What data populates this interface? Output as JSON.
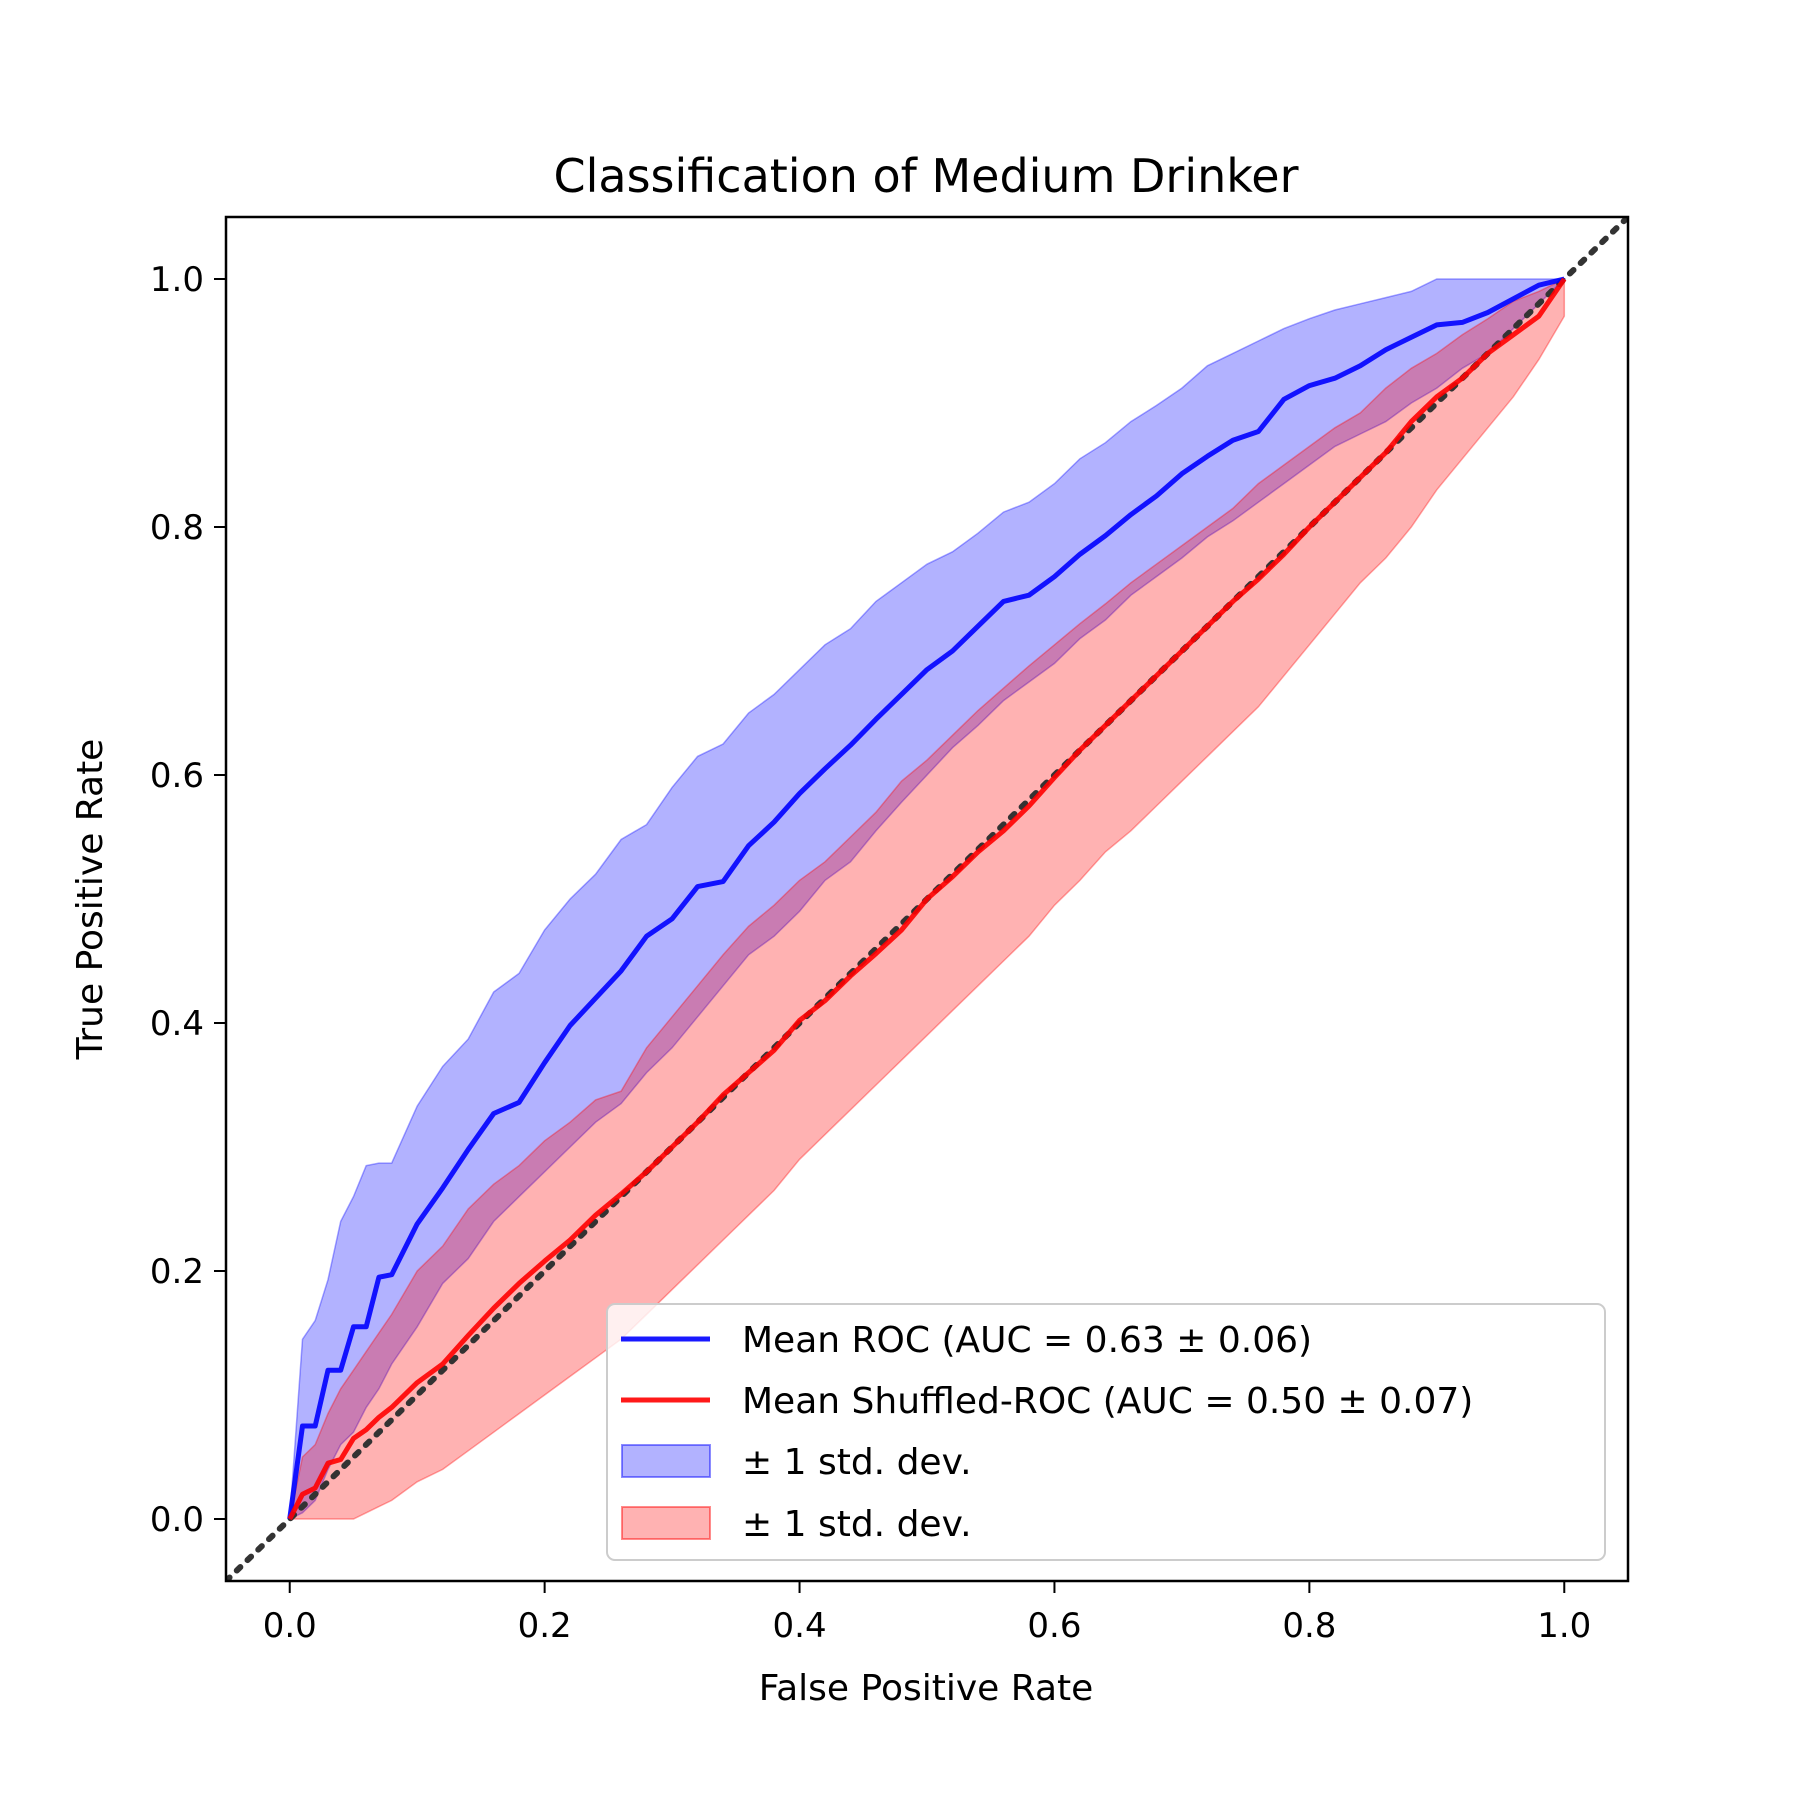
{
  "chart_data": {
    "type": "line",
    "title": "Classification of Medium Drinker",
    "xlabel": "False Positive Rate",
    "ylabel": "True Positive Rate",
    "xlim": [
      -0.05,
      1.05
    ],
    "ylim": [
      -0.05,
      1.05
    ],
    "xticks": [
      "0.0",
      "0.2",
      "0.4",
      "0.6",
      "0.8",
      "1.0"
    ],
    "yticks": [
      "0.0",
      "0.2",
      "0.4",
      "0.6",
      "0.8",
      "1.0"
    ],
    "grid": false,
    "legend_position": "lower-right",
    "series": [
      {
        "name": "Mean ROC (AUC = 0.63 ± 0.06)",
        "color": "#0000ff",
        "x": [
          0,
          0.01,
          0.02,
          0.03,
          0.04,
          0.05,
          0.06,
          0.07,
          0.08,
          0.1,
          0.12,
          0.14,
          0.16,
          0.18,
          0.2,
          0.22,
          0.24,
          0.26,
          0.28,
          0.3,
          0.32,
          0.34,
          0.36,
          0.38,
          0.4,
          0.42,
          0.44,
          0.46,
          0.48,
          0.5,
          0.52,
          0.54,
          0.56,
          0.58,
          0.6,
          0.62,
          0.64,
          0.66,
          0.68,
          0.7,
          0.72,
          0.74,
          0.76,
          0.78,
          0.8,
          0.82,
          0.84,
          0.86,
          0.88,
          0.9,
          0.92,
          0.94,
          0.96,
          0.98,
          1.0
        ],
        "y": [
          0,
          0.075,
          0.075,
          0.12,
          0.12,
          0.155,
          0.155,
          0.195,
          0.197,
          0.238,
          0.267,
          0.298,
          0.327,
          0.336,
          0.368,
          0.398,
          0.42,
          0.442,
          0.47,
          0.484,
          0.51,
          0.514,
          0.543,
          0.562,
          0.585,
          0.605,
          0.624,
          0.645,
          0.665,
          0.685,
          0.7,
          0.72,
          0.74,
          0.745,
          0.76,
          0.778,
          0.793,
          0.81,
          0.825,
          0.843,
          0.857,
          0.87,
          0.877,
          0.903,
          0.914,
          0.92,
          0.93,
          0.943,
          0.953,
          0.963,
          0.965,
          0.973,
          0.984,
          0.995,
          1.0
        ]
      },
      {
        "name": "Mean Shuffled-ROC (AUC = 0.50 ± 0.07)",
        "color": "#ff0000",
        "x": [
          0,
          0.01,
          0.02,
          0.03,
          0.04,
          0.05,
          0.06,
          0.07,
          0.08,
          0.1,
          0.12,
          0.14,
          0.16,
          0.18,
          0.2,
          0.22,
          0.24,
          0.26,
          0.28,
          0.3,
          0.32,
          0.34,
          0.36,
          0.38,
          0.4,
          0.42,
          0.44,
          0.46,
          0.48,
          0.5,
          0.52,
          0.54,
          0.56,
          0.58,
          0.6,
          0.62,
          0.64,
          0.66,
          0.68,
          0.7,
          0.72,
          0.74,
          0.76,
          0.78,
          0.8,
          0.82,
          0.84,
          0.86,
          0.88,
          0.9,
          0.92,
          0.94,
          0.96,
          0.98,
          1.0
        ],
        "y": [
          0,
          0.02,
          0.025,
          0.045,
          0.048,
          0.065,
          0.072,
          0.082,
          0.09,
          0.11,
          0.125,
          0.148,
          0.17,
          0.19,
          0.208,
          0.225,
          0.245,
          0.262,
          0.28,
          0.3,
          0.32,
          0.342,
          0.36,
          0.378,
          0.402,
          0.418,
          0.438,
          0.456,
          0.475,
          0.5,
          0.518,
          0.538,
          0.555,
          0.575,
          0.598,
          0.62,
          0.64,
          0.66,
          0.68,
          0.7,
          0.72,
          0.74,
          0.758,
          0.778,
          0.8,
          0.82,
          0.84,
          0.86,
          0.885,
          0.905,
          0.92,
          0.94,
          0.955,
          0.97,
          1.0
        ]
      }
    ],
    "bands": [
      {
        "name": "± 1 std. dev.",
        "color": "#0000ff",
        "opacity": 0.3,
        "upper": [
          0,
          0.145,
          0.16,
          0.193,
          0.24,
          0.26,
          0.285,
          0.287,
          0.287,
          0.333,
          0.365,
          0.387,
          0.425,
          0.44,
          0.475,
          0.5,
          0.52,
          0.548,
          0.56,
          0.59,
          0.615,
          0.625,
          0.65,
          0.665,
          0.685,
          0.705,
          0.718,
          0.74,
          0.755,
          0.77,
          0.78,
          0.795,
          0.812,
          0.82,
          0.835,
          0.855,
          0.868,
          0.885,
          0.898,
          0.912,
          0.93,
          0.94,
          0.95,
          0.96,
          0.968,
          0.975,
          0.98,
          0.985,
          0.99,
          1.0,
          1.0,
          1.0,
          1.0,
          1.0,
          1.0
        ],
        "lower": [
          0,
          0.005,
          0.015,
          0.04,
          0.06,
          0.07,
          0.09,
          0.105,
          0.125,
          0.155,
          0.19,
          0.21,
          0.24,
          0.26,
          0.28,
          0.3,
          0.32,
          0.335,
          0.36,
          0.38,
          0.405,
          0.43,
          0.455,
          0.47,
          0.49,
          0.515,
          0.53,
          0.555,
          0.578,
          0.6,
          0.622,
          0.64,
          0.66,
          0.675,
          0.69,
          0.71,
          0.725,
          0.745,
          0.76,
          0.775,
          0.792,
          0.805,
          0.82,
          0.835,
          0.85,
          0.865,
          0.875,
          0.885,
          0.9,
          0.912,
          0.928,
          0.94,
          0.96,
          0.98,
          1.0
        ]
      },
      {
        "name": "± 1 std. dev.",
        "color": "#ff0000",
        "opacity": 0.3,
        "upper": [
          0,
          0.05,
          0.06,
          0.085,
          0.105,
          0.12,
          0.135,
          0.15,
          0.165,
          0.2,
          0.22,
          0.25,
          0.27,
          0.285,
          0.305,
          0.32,
          0.338,
          0.345,
          0.38,
          0.405,
          0.43,
          0.455,
          0.478,
          0.495,
          0.515,
          0.53,
          0.55,
          0.57,
          0.595,
          0.612,
          0.632,
          0.652,
          0.67,
          0.688,
          0.705,
          0.722,
          0.738,
          0.755,
          0.77,
          0.785,
          0.8,
          0.815,
          0.835,
          0.85,
          0.865,
          0.88,
          0.892,
          0.912,
          0.928,
          0.94,
          0.955,
          0.968,
          0.982,
          0.99,
          1.0
        ],
        "lower": [
          0,
          0,
          0,
          0,
          0,
          0,
          0.005,
          0.01,
          0.015,
          0.03,
          0.04,
          0.055,
          0.07,
          0.085,
          0.1,
          0.115,
          0.13,
          0.145,
          0.165,
          0.185,
          0.205,
          0.225,
          0.245,
          0.265,
          0.29,
          0.31,
          0.33,
          0.35,
          0.37,
          0.39,
          0.41,
          0.43,
          0.45,
          0.47,
          0.495,
          0.515,
          0.538,
          0.555,
          0.575,
          0.595,
          0.615,
          0.635,
          0.655,
          0.68,
          0.705,
          0.73,
          0.755,
          0.775,
          0.8,
          0.83,
          0.855,
          0.88,
          0.905,
          0.935,
          0.97
        ]
      }
    ],
    "reference_line": {
      "x": [
        -0.05,
        1.05
      ],
      "y": [
        -0.05,
        1.05
      ],
      "color": "#333333",
      "style": "dotted"
    }
  }
}
